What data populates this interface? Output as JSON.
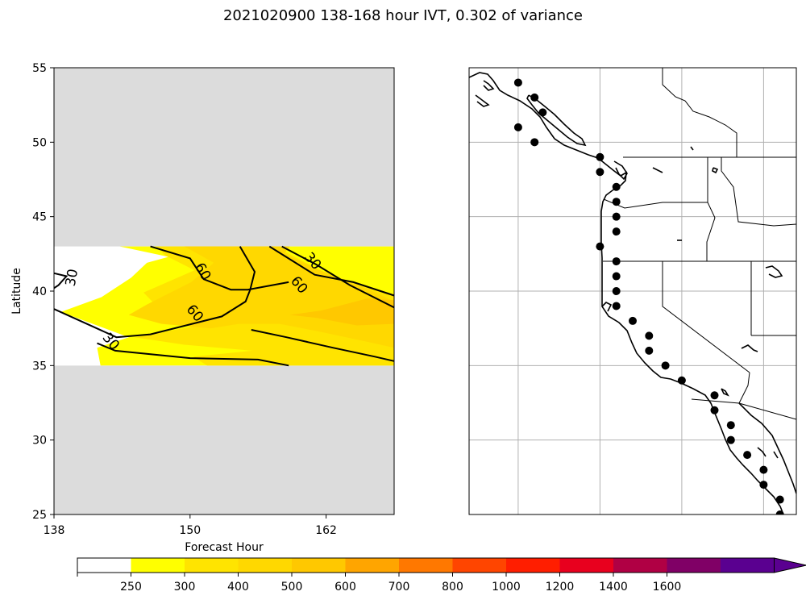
{
  "title": "2021020900 138-168 hour IVT, 0.302 of variance",
  "chart_data": [
    {
      "type": "contour",
      "xlabel": "Forecast Hour",
      "ylabel": "Latitude",
      "xlim": [
        138,
        168
      ],
      "ylim": [
        25,
        55
      ],
      "xticks": [
        "138",
        "150",
        "162"
      ],
      "xtick_values": [
        138,
        150,
        162
      ],
      "yticks": [
        "25",
        "30",
        "35",
        "40",
        "45",
        "50",
        "55"
      ],
      "ytick_values": [
        25,
        30,
        35,
        40,
        45,
        50,
        55
      ],
      "masked_color": "#dcdcdc",
      "data_band_lat": [
        35,
        43
      ],
      "filled_levels": [
        {
          "level": "250-300",
          "color": "#ffff00",
          "polygon": [
            [
              143.8,
              43
            ],
            [
              168,
              43
            ],
            [
              168,
              35
            ],
            [
              142.1,
              35
            ],
            [
              141.8,
              36.2
            ],
            [
              144.6,
              36.9
            ],
            [
              142.5,
              37.5
            ],
            [
              138.6,
              38.6
            ],
            [
              142.2,
              39.6
            ],
            [
              144.8,
              40.9
            ],
            [
              146.2,
              41.9
            ],
            [
              148.1,
              42.3
            ]
          ]
        },
        {
          "level": "300-400",
          "color": "#ffe400",
          "polygon": [
            [
              147,
              43
            ],
            [
              157.5,
              43
            ],
            [
              159.5,
              42.2
            ],
            [
              162.2,
              41.1
            ],
            [
              165,
              40.5
            ],
            [
              168,
              39.8
            ],
            [
              168,
              35
            ],
            [
              151.5,
              35
            ],
            [
              150.3,
              35.6
            ],
            [
              155.5,
              36
            ],
            [
              149.5,
              36.4
            ],
            [
              145.1,
              36.9
            ],
            [
              151.5,
              37.8
            ],
            [
              147.3,
              38.8
            ],
            [
              145.9,
              39.9
            ],
            [
              150.4,
              41.4
            ],
            [
              147.8,
              42.4
            ]
          ]
        },
        {
          "level": "400-500",
          "color": "#ffd800",
          "polygon": [
            [
              149.5,
              43
            ],
            [
              158.8,
              43
            ],
            [
              158.3,
              42.5
            ],
            [
              161.8,
              41.3
            ],
            [
              165.8,
              40.1
            ],
            [
              168,
              39.3
            ],
            [
              168,
              36.2
            ],
            [
              165.6,
              36.6
            ],
            [
              161.3,
              37.3
            ],
            [
              157.9,
              37.8
            ],
            [
              154.3,
              37.8
            ],
            [
              151.8,
              37.5
            ],
            [
              147.5,
              37.8
            ],
            [
              144.6,
              38.4
            ],
            [
              146.2,
              39.1
            ],
            [
              150.1,
              40.6
            ],
            [
              152.1,
              41.9
            ]
          ]
        },
        {
          "level": "500-600",
          "color": "#ffc800",
          "polygon": [
            [
              161.6,
              38.7
            ],
            [
              165.6,
              39.5
            ],
            [
              168,
              39.4
            ],
            [
              168,
              37.8
            ],
            [
              164.7,
              37.7
            ],
            [
              161.2,
              38.2
            ],
            [
              158.8,
              38.4
            ]
          ]
        }
      ],
      "contours": [
        {
          "level": 30,
          "points": [
            [
              141.8,
              36.5
            ],
            [
              143.4,
              36.0
            ],
            [
              150,
              35.5
            ],
            [
              156,
              35.4
            ],
            [
              158.7,
              35
            ]
          ]
        },
        {
          "level": 30,
          "points": [
            [
              138,
              41.2
            ],
            [
              139.1,
              41.0
            ],
            [
              138.4,
              40.4
            ],
            [
              138,
              40.2
            ]
          ]
        },
        {
          "level": 30,
          "points": [
            [
              158.1,
              43
            ],
            [
              161.1,
              41.8
            ],
            [
              164.1,
              40.4
            ],
            [
              168,
              38.9
            ]
          ]
        },
        {
          "level": 60,
          "points": [
            [
              138,
              38.8
            ],
            [
              143.5,
              36.9
            ],
            [
              146.5,
              37.1
            ],
            [
              152.8,
              38.3
            ],
            [
              154.9,
              39.3
            ],
            [
              155.3,
              40.1
            ],
            [
              155.7,
              41.3
            ],
            [
              154.4,
              43
            ]
          ]
        },
        {
          "level": 60,
          "points": [
            [
              146.5,
              43
            ],
            [
              150,
              42.2
            ],
            [
              151.2,
              40.8
            ],
            [
              153.6,
              40.1
            ],
            [
              155.1,
              40.1
            ],
            [
              158.7,
              40.6
            ]
          ]
        },
        {
          "level": 60,
          "points": [
            [
              157,
              43
            ],
            [
              161,
              41.1
            ],
            [
              164.4,
              40.6
            ],
            [
              168,
              39.7
            ]
          ]
        },
        {
          "level": 60,
          "points": [
            [
              155.4,
              37.4
            ],
            [
              158.5,
              36.9
            ],
            [
              162.6,
              36.2
            ],
            [
              166.3,
              35.6
            ],
            [
              168,
              35.3
            ]
          ]
        }
      ],
      "contour_labels": [
        {
          "text": "30",
          "x": 139.6,
          "y": 40.9,
          "angle": -80
        },
        {
          "text": "30",
          "x": 143.0,
          "y": 36.6,
          "angle": 50
        },
        {
          "text": "30",
          "x": 160.8,
          "y": 42.0,
          "angle": 50
        },
        {
          "text": "60",
          "x": 151.1,
          "y": 41.3,
          "angle": 60
        },
        {
          "text": "60",
          "x": 150.4,
          "y": 38.5,
          "angle": 50
        },
        {
          "text": "60",
          "x": 159.6,
          "y": 40.4,
          "angle": 50
        }
      ]
    },
    {
      "type": "map",
      "region": "US West Coast",
      "extent_lon": [
        -128,
        -108
      ],
      "extent_lat": [
        25,
        55
      ],
      "grid_lon": [
        -125,
        -120,
        -115,
        -110
      ],
      "grid_lat": [
        30,
        35,
        40,
        45,
        50
      ],
      "markers": [
        [
          -125,
          54
        ],
        [
          -124,
          53
        ],
        [
          -123.5,
          52
        ],
        [
          -125,
          51
        ],
        [
          -124,
          50
        ],
        [
          -120,
          49
        ],
        [
          -120,
          48
        ],
        [
          -119,
          47
        ],
        [
          -119,
          46
        ],
        [
          -119,
          45
        ],
        [
          -119,
          44
        ],
        [
          -120,
          43
        ],
        [
          -119,
          42
        ],
        [
          -119,
          41
        ],
        [
          -119,
          40
        ],
        [
          -119,
          39
        ],
        [
          -118,
          38
        ],
        [
          -117,
          37
        ],
        [
          -117,
          36
        ],
        [
          -116,
          35
        ],
        [
          -115,
          34
        ],
        [
          -113,
          33
        ],
        [
          -113,
          32
        ],
        [
          -112,
          31
        ],
        [
          -112,
          30
        ],
        [
          -111,
          29
        ],
        [
          -110,
          28
        ],
        [
          -110,
          27
        ],
        [
          -109,
          26
        ],
        [
          -109,
          25
        ]
      ]
    }
  ],
  "colorbar": {
    "tick_labels": [
      "250",
      "300",
      "400",
      "500",
      "600",
      "700",
      "800",
      "1000",
      "1200",
      "1400",
      "1600"
    ],
    "colors": [
      "#ffffff",
      "#ffff00",
      "#ffe400",
      "#ffd800",
      "#ffc800",
      "#ffa500",
      "#ff7800",
      "#ff4500",
      "#ff1e00",
      "#e8001e",
      "#b00044",
      "#800066",
      "#5a0090"
    ],
    "extend": "max"
  }
}
